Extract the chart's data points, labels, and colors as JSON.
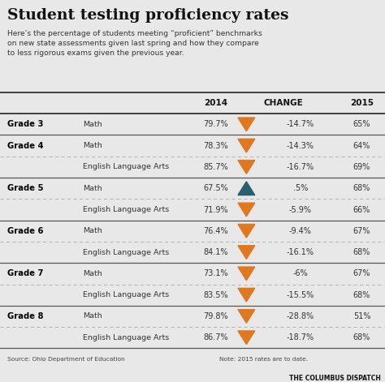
{
  "title": "Student testing proficiency rates",
  "subtitle": "Here’s the percentage of students meeting “proficient” benchmarks\non new state assessments given last spring and how they compare\nto less rigorous exams given the previous year.",
  "col_headers": [
    "2014",
    "CHANGE",
    "2015"
  ],
  "rows": [
    {
      "grade": "Grade 3",
      "subject": "Math",
      "val2014": "79.7%",
      "change": "-14.7%",
      "val2015": "65%",
      "arrow": "down",
      "solid_line": true
    },
    {
      "grade": "Grade 4",
      "subject": "Math",
      "val2014": "78.3%",
      "change": "-14.3%",
      "val2015": "64%",
      "arrow": "down",
      "solid_line": true
    },
    {
      "grade": "",
      "subject": "English Language Arts",
      "val2014": "85.7%",
      "change": "-16.7%",
      "val2015": "69%",
      "arrow": "down",
      "solid_line": false
    },
    {
      "grade": "Grade 5",
      "subject": "Math",
      "val2014": "67.5%",
      "change": ".5%",
      "val2015": "68%",
      "arrow": "up",
      "solid_line": true
    },
    {
      "grade": "",
      "subject": "English Language Arts",
      "val2014": "71.9%",
      "change": "-5.9%",
      "val2015": "66%",
      "arrow": "down",
      "solid_line": false
    },
    {
      "grade": "Grade 6",
      "subject": "Math",
      "val2014": "76.4%",
      "change": "-9.4%",
      "val2015": "67%",
      "arrow": "down",
      "solid_line": true
    },
    {
      "grade": "",
      "subject": "English Language Arts",
      "val2014": "84.1%",
      "change": "-16.1%",
      "val2015": "68%",
      "arrow": "down",
      "solid_line": false
    },
    {
      "grade": "Grade 7",
      "subject": "Math",
      "val2014": "73.1%",
      "change": "-6%",
      "val2015": "67%",
      "arrow": "down",
      "solid_line": true
    },
    {
      "grade": "",
      "subject": "English Language Arts",
      "val2014": "83.5%",
      "change": "-15.5%",
      "val2015": "68%",
      "arrow": "down",
      "solid_line": false
    },
    {
      "grade": "Grade 8",
      "subject": "Math",
      "val2014": "79.8%",
      "change": "-28.8%",
      "val2015": "51%",
      "arrow": "down",
      "solid_line": true
    },
    {
      "grade": "",
      "subject": "English Language Arts",
      "val2014": "86.7%",
      "change": "-18.7%",
      "val2015": "68%",
      "arrow": "down",
      "solid_line": false
    }
  ],
  "footer_left": "Source: Ohio Department of Education",
  "footer_right": "Note: 2015 rates are to date.",
  "footer_brand": "THE COLUMBUS DISPATCH",
  "bg_color": "#e8e8e8",
  "header_line_color": "#333333",
  "solid_line_color": "#555555",
  "dashed_line_color": "#aaaaaa",
  "arrow_down_color": "#e07820",
  "arrow_up_color": "#2a5f6e",
  "grade_color": "#000000",
  "subject_color": "#333333",
  "value_color": "#333333",
  "change_color": "#333333",
  "header_color": "#111111"
}
